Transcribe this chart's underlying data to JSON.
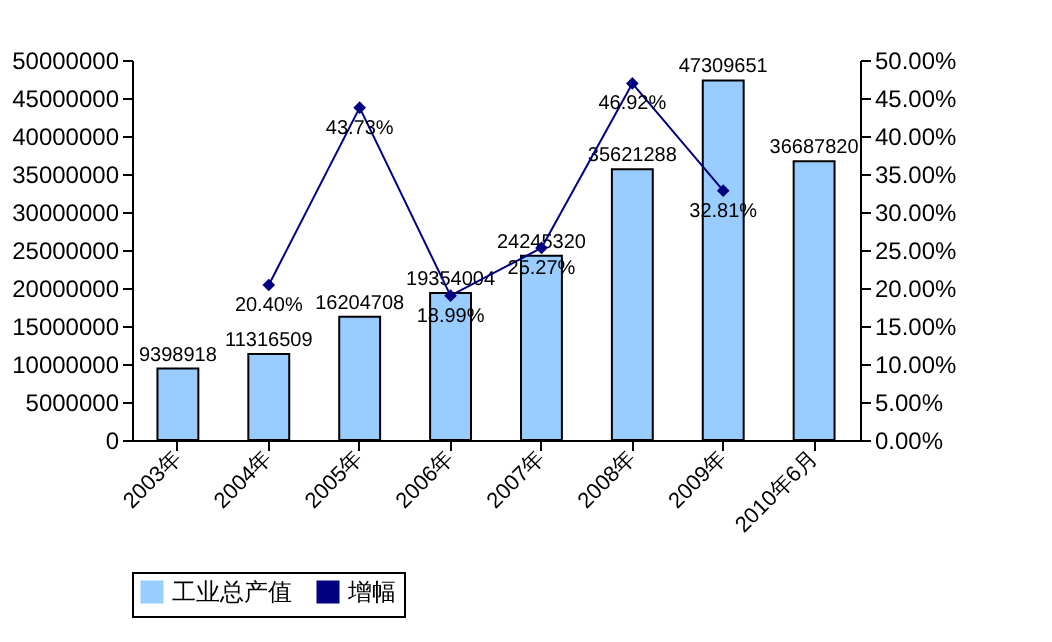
{
  "chart_data": {
    "type": "bar",
    "categories": [
      "2003年",
      "2004年",
      "2005年",
      "2006年",
      "2007年",
      "2008年",
      "2009年",
      "2010年6月"
    ],
    "series": [
      {
        "name": "工业总产值",
        "type": "bar",
        "color": "#99ccff",
        "values": [
          9398918,
          11316509,
          16204708,
          19354004,
          24245320,
          35621288,
          47309651,
          36687820
        ],
        "value_labels": [
          "9398918",
          "11316509",
          "16204708",
          "19354004",
          "24245320",
          "35621288",
          "47309651",
          "36687820"
        ]
      },
      {
        "name": "增幅",
        "type": "line",
        "axis": "y2",
        "color": "#000080",
        "marker": "diamond",
        "values": [
          null,
          20.4,
          43.73,
          18.99,
          25.27,
          46.92,
          32.81,
          null
        ],
        "value_labels": [
          null,
          "20.40%",
          "43.73%",
          "18.99%",
          "25.27%",
          "46.92%",
          "32.81%",
          null
        ]
      }
    ],
    "ylim": [
      0,
      50000000
    ],
    "yticks": [
      0,
      5000000,
      10000000,
      15000000,
      20000000,
      25000000,
      30000000,
      35000000,
      40000000,
      45000000,
      50000000
    ],
    "y2lim": [
      0,
      50
    ],
    "y2ticks": [
      {
        "value": 0,
        "label": "0.00%"
      },
      {
        "value": 5,
        "label": "5.00%"
      },
      {
        "value": 10,
        "label": "10.00%"
      },
      {
        "value": 15,
        "label": "15.00%"
      },
      {
        "value": 20,
        "label": "20.00%"
      },
      {
        "value": 25,
        "label": "25.00%"
      },
      {
        "value": 30,
        "label": "30.00%"
      },
      {
        "value": 35,
        "label": "35.00%"
      },
      {
        "value": 40,
        "label": "40.00%"
      },
      {
        "value": 45,
        "label": "45.00%"
      },
      {
        "value": 50,
        "label": "50.00%"
      }
    ],
    "grid": false,
    "legend": "bottom"
  }
}
